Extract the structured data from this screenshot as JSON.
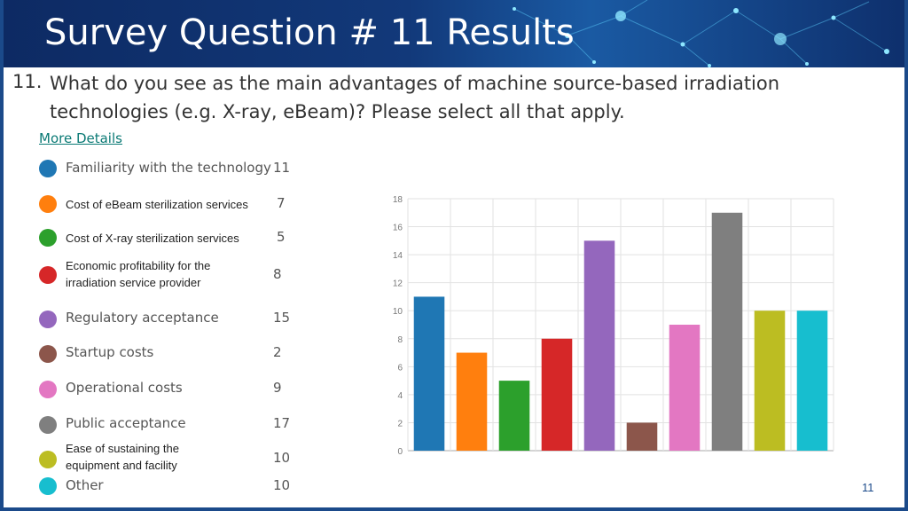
{
  "slide": {
    "title": "Survey Question # 11 Results",
    "question_number": "11.",
    "question_text": "What do you see as the main advantages of machine source-based irradiation technologies (e.g. X-ray, eBeam)? Please select all that apply.",
    "more_details_label": "More Details",
    "page_number": "11"
  },
  "legend": [
    {
      "label": "Familiarity with the technology",
      "count": "11",
      "color": "#1f77b4"
    },
    {
      "label": "Cost of eBeam sterilization services",
      "count": "7",
      "color": "#ff7f0e"
    },
    {
      "label": "Cost of X-ray sterilization services",
      "count": "5",
      "color": "#2ca02c"
    },
    {
      "label": "Economic profitability for the irradiation service provider",
      "count": "8",
      "color": "#d62728"
    },
    {
      "label": "Regulatory acceptance",
      "count": "15",
      "color": "#9467bd"
    },
    {
      "label": "Startup costs",
      "count": "2",
      "color": "#8c564b"
    },
    {
      "label": "Operational costs",
      "count": "9",
      "color": "#e377c2"
    },
    {
      "label": "Public acceptance",
      "count": "17",
      "color": "#7f7f7f"
    },
    {
      "label": "Ease of sustaining the equipment and facility",
      "count": "10",
      "color": "#bcbd22"
    },
    {
      "label": "Other",
      "count": "10",
      "color": "#17becf"
    }
  ],
  "chart_data": {
    "type": "bar",
    "categories": [
      "Familiarity with the technology",
      "Cost of eBeam sterilization services",
      "Cost of X-ray sterilization services",
      "Economic profitability for the irradiation service provider",
      "Regulatory acceptance",
      "Startup costs",
      "Operational costs",
      "Public acceptance",
      "Ease of sustaining the equipment and facility",
      "Other"
    ],
    "values": [
      11,
      7,
      5,
      8,
      15,
      2,
      9,
      17,
      10,
      10
    ],
    "colors": [
      "#1f77b4",
      "#ff7f0e",
      "#2ca02c",
      "#d62728",
      "#9467bd",
      "#8c564b",
      "#e377c2",
      "#7f7f7f",
      "#bcbd22",
      "#17becf"
    ],
    "yticks": [
      "0",
      "2",
      "4",
      "6",
      "8",
      "10",
      "12",
      "14",
      "16",
      "18"
    ],
    "ylim": [
      0,
      18
    ],
    "grid": true,
    "title": "",
    "xlabel": "",
    "ylabel": ""
  }
}
